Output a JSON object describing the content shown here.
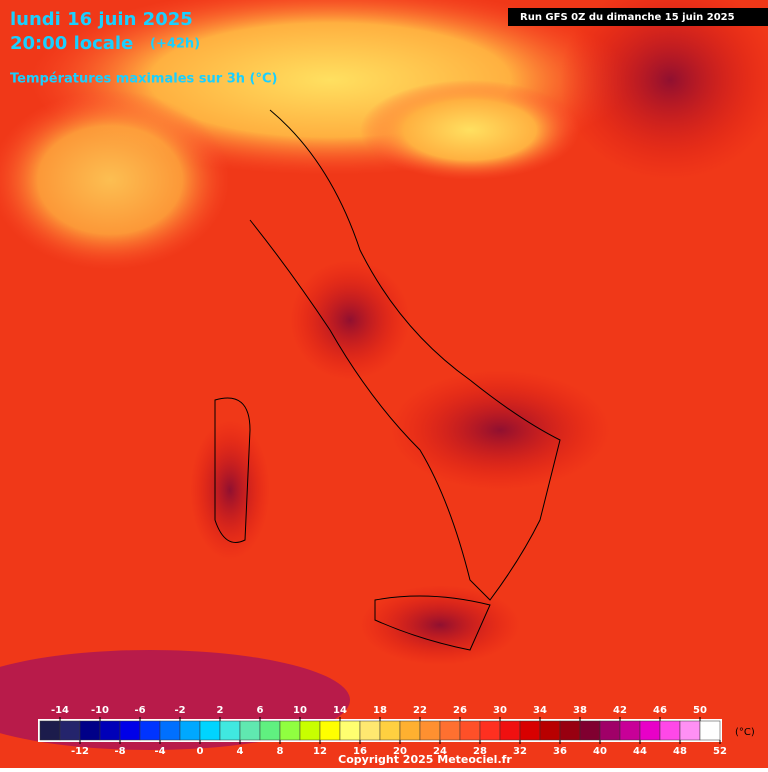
{
  "header": {
    "date": "lundi 16 juin 2025",
    "time": "20:00 locale",
    "lead": "(+42h)",
    "subtitle": "Températures maximales sur 3h (°C)",
    "run": "Run GFS 0Z du dimanche 15 juin 2025"
  },
  "legend": {
    "unit": "(°C)",
    "range": [
      -16,
      52
    ],
    "colors": [
      "#1c1c4c",
      "#24246c",
      "#000088",
      "#0000b8",
      "#0000e8",
      "#0034ff",
      "#0070ff",
      "#00a8ff",
      "#00d4ff",
      "#40e8e0",
      "#60e8b0",
      "#60f080",
      "#90ff40",
      "#c8ff00",
      "#ffff00",
      "#ffff70",
      "#ffe870",
      "#ffd040",
      "#ffb030",
      "#ff9030",
      "#ff7030",
      "#ff5028",
      "#ff3020",
      "#f01010",
      "#d80000",
      "#b80000",
      "#980010",
      "#800030",
      "#a00068",
      "#c80098",
      "#e800c8",
      "#ff48e8",
      "#ff90f4",
      "#ffffff"
    ],
    "ticks": [
      -14,
      -12,
      -10,
      -8,
      -6,
      -4,
      -2,
      0,
      2,
      4,
      6,
      8,
      10,
      12,
      14,
      16,
      18,
      20,
      22,
      24,
      26,
      28,
      30,
      32,
      34,
      36,
      38,
      40,
      42,
      44,
      46,
      48,
      50,
      52
    ]
  },
  "footer": {
    "copyright": "Copyright 2025 Meteociel.fr"
  }
}
